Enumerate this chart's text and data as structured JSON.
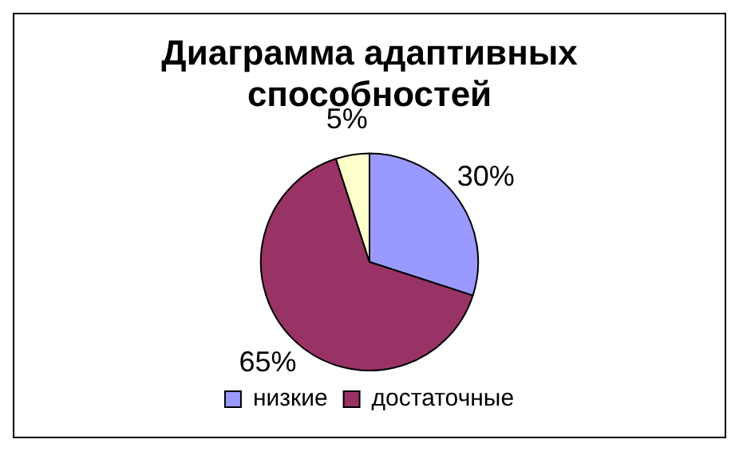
{
  "chart_data": {
    "type": "pie",
    "title": "Диаграмма адаптивных способностей",
    "categories": [
      "низкие",
      "достаточные",
      null
    ],
    "values": [
      30,
      65,
      5
    ],
    "colors": [
      "#9999ff",
      "#993366",
      "#ffffcc"
    ],
    "value_labels": [
      "30%",
      "65%",
      "5%"
    ],
    "legend": "bottom"
  }
}
